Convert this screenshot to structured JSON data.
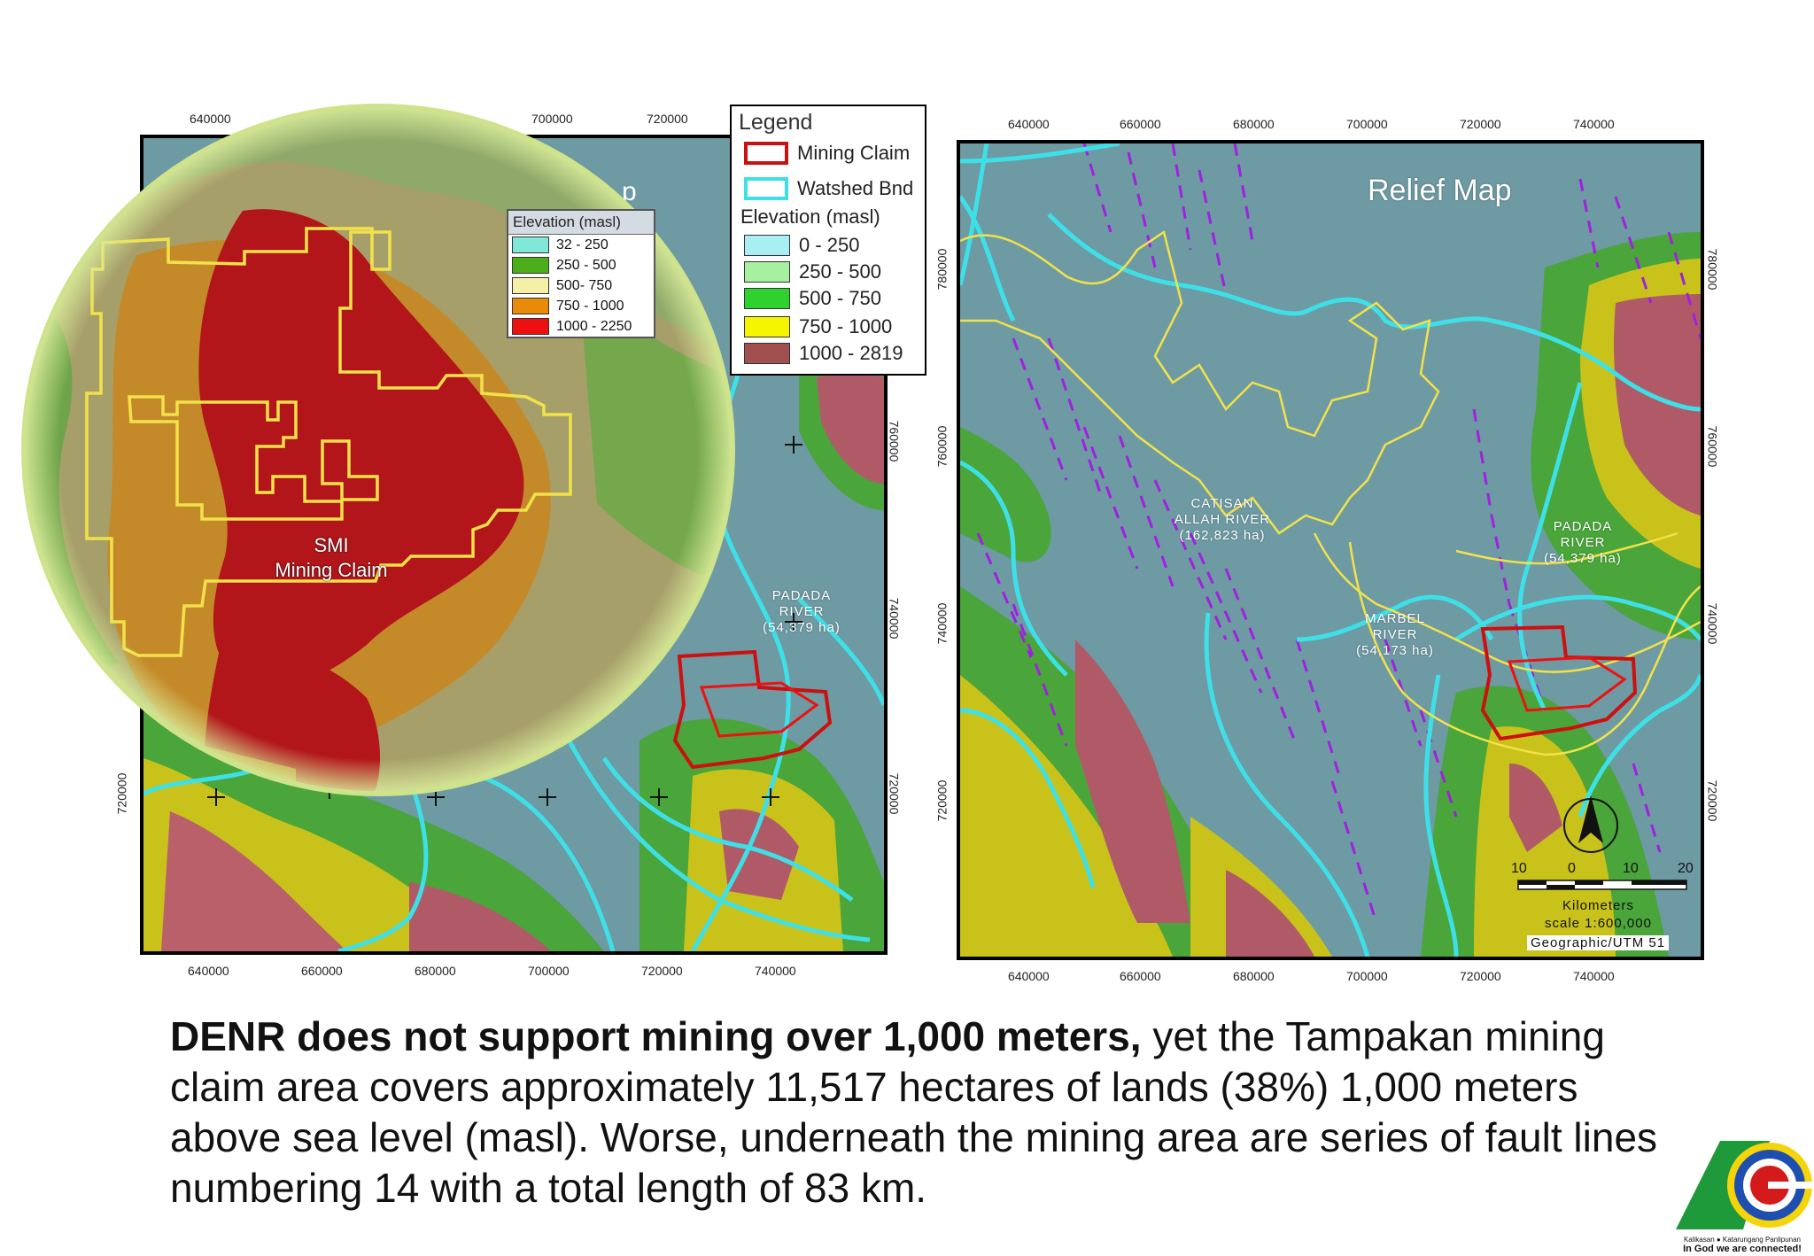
{
  "left_map": {
    "top_ticks": [
      "640000",
      "700000",
      "720000"
    ],
    "bottom_ticks": [
      "640000",
      "660000",
      "680000",
      "700000",
      "720000",
      "740000"
    ],
    "left_ticks": [
      "720000"
    ],
    "right_ticks": [
      "760000",
      "740000",
      "720000"
    ],
    "river_label": [
      "PADADA",
      "RIVER",
      "(54,379 ha)"
    ],
    "title_fragment": "p"
  },
  "legend": {
    "title": "Legend",
    "mining_claim": "Mining Claim",
    "watershed": "Watshed Bnd",
    "elevation_title": "Elevation (masl)",
    "classes": [
      {
        "label": "0 - 250",
        "color": "#a8eef2"
      },
      {
        "label": "250 - 500",
        "color": "#a6f0a0"
      },
      {
        "label": "500 - 750",
        "color": "#2ed12e"
      },
      {
        "label": "750 - 1000",
        "color": "#f5f500"
      },
      {
        "label": "1000 - 2819",
        "color": "#a14f4f"
      }
    ],
    "mining_color": "#cc1010",
    "watershed_color": "#3ee0e8"
  },
  "inset": {
    "legend_title": "Elevation (masl)",
    "classes": [
      {
        "label": "32 - 250",
        "color": "#7fe8d8"
      },
      {
        "label": "250 - 500",
        "color": "#4cae1a"
      },
      {
        "label": "500- 750",
        "color": "#f4f0a8"
      },
      {
        "label": "750 - 1000",
        "color": "#e88a0a"
      },
      {
        "label": "1000 - 2250",
        "color": "#ee1010"
      }
    ],
    "claim_label_1": "SMI",
    "claim_label_2": "Mining Claim"
  },
  "right_map": {
    "title": "Relief Map",
    "top_ticks": [
      "640000",
      "660000",
      "680000",
      "700000",
      "720000",
      "740000"
    ],
    "bottom_ticks": [
      "640000",
      "660000",
      "680000",
      "700000",
      "720000",
      "740000"
    ],
    "left_ticks": [
      "780000",
      "760000",
      "740000",
      "720000"
    ],
    "right_ticks": [
      "780000",
      "760000",
      "740000",
      "720000"
    ],
    "catisan": [
      "CATISAN",
      "ALLAH RIVER",
      "(162,823 ha)"
    ],
    "padada": [
      "PADADA",
      "RIVER",
      "(54,379 ha)"
    ],
    "marbel": [
      "MARBEL",
      "RIVER",
      "(54,173 ha)"
    ],
    "scale_numbers": [
      "10",
      "0",
      "10",
      "20"
    ],
    "scale_unit": "Kilometers",
    "scale_ratio": "scale 1:600,000",
    "projection": "Geographic/UTM 51"
  },
  "caption": {
    "bold": "DENR does not support mining over 1,000 meters,",
    "rest": " yet the Tampakan mining claim area covers approximately 11,517 hectares of lands  (38%) 1,000 meters above sea level (masl).  Worse, underneath the mining area are series of fault lines numbering 14 with a total length of 83 km."
  },
  "logo": {
    "line1": "Kalikasan ● Katarungang Panlipunan",
    "line2": "In God we are connected!"
  }
}
